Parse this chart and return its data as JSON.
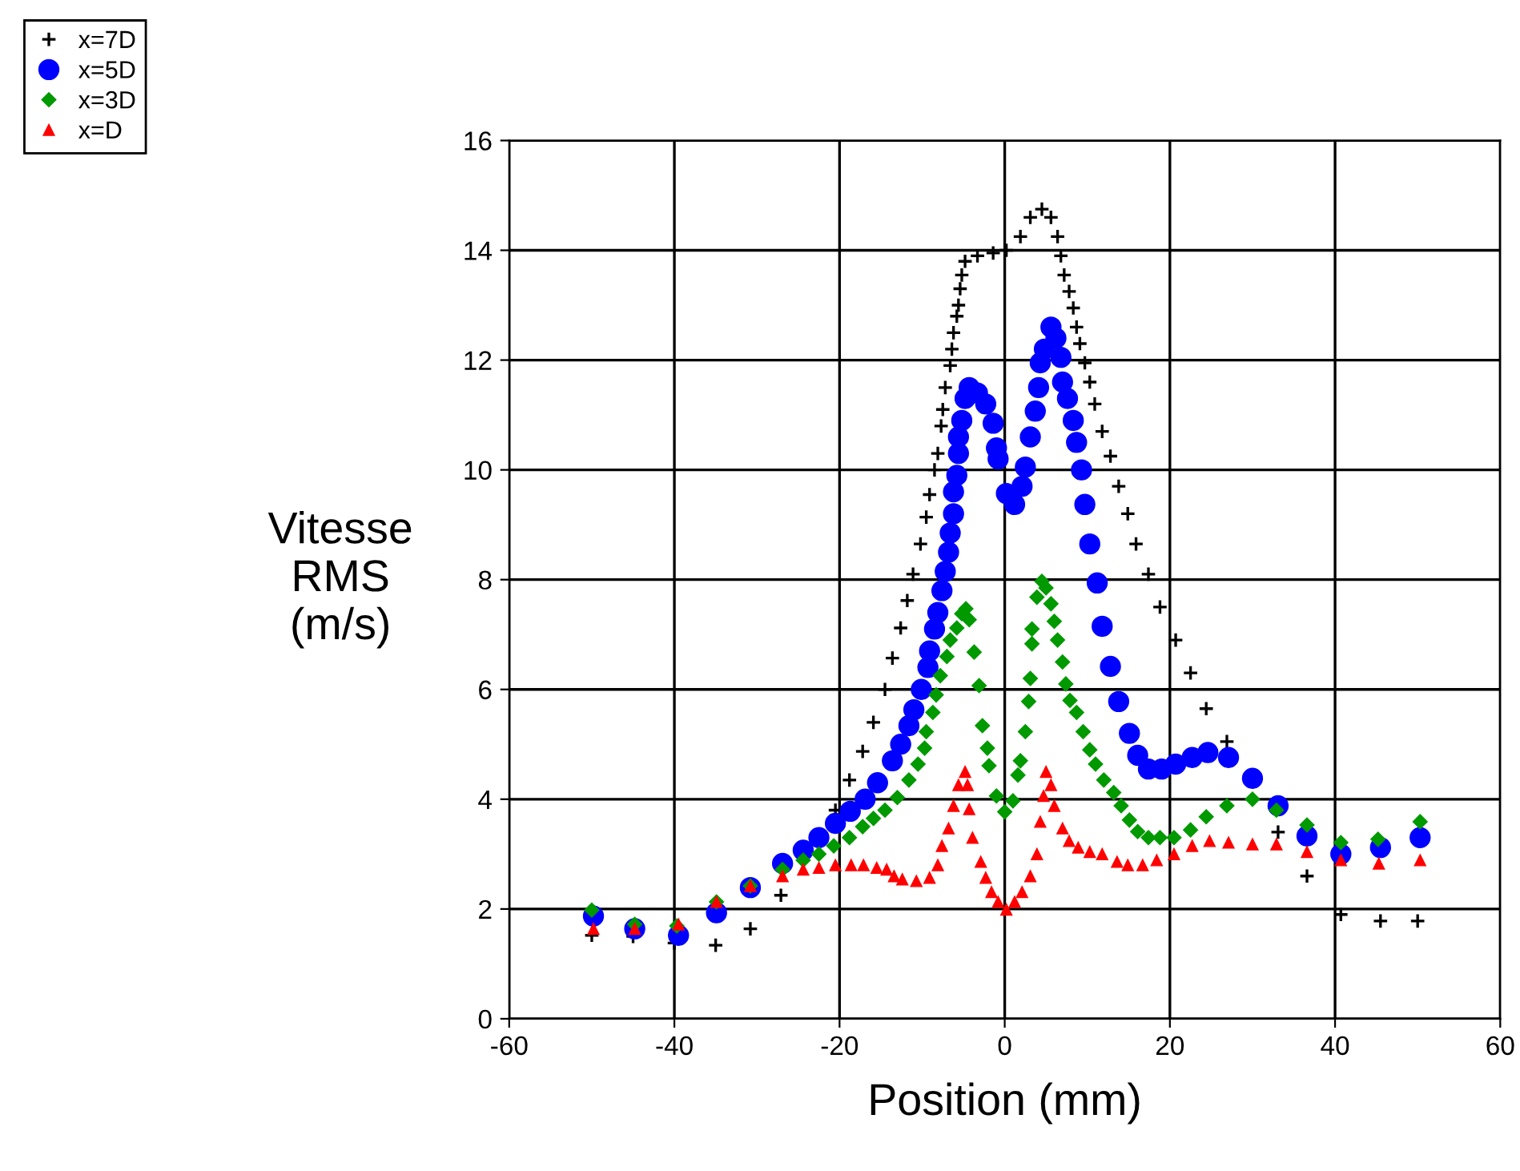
{
  "chart_data": {
    "type": "scatter",
    "xlabel": "Position (mm)",
    "ylabel": "Vitesse\nRMS\n(m/s)",
    "xlim": [
      -60,
      60
    ],
    "xticks": [
      -60,
      -40,
      -20,
      0,
      20,
      40,
      60
    ],
    "ylim": [
      0,
      16
    ],
    "yticks": [
      0,
      2,
      4,
      6,
      8,
      10,
      12,
      14,
      16
    ],
    "grid": true,
    "legend": "top left",
    "series": [
      {
        "name": "x=7D",
        "color": "#000000",
        "marker": "cross",
        "x": [
          -50,
          -45,
          -40,
          -35,
          -30.8,
          -27.1,
          -20.5,
          -18.8,
          -17.2,
          -15.9,
          -14.5,
          -13.6,
          -12.6,
          -11.8,
          -11.1,
          -10.2,
          -9.5,
          -9.1,
          -8.5,
          -8.1,
          -7.7,
          -7.5,
          -7.2,
          -6.6,
          -6.4,
          -6.2,
          -5.8,
          -5.6,
          -5.4,
          -5.2,
          -4.8,
          -3.3,
          -1.4,
          0.2,
          1.9,
          3.1,
          4.5,
          5.6,
          6.4,
          6.8,
          7.2,
          7.8,
          8.3,
          8.7,
          9.1,
          9.7,
          10.3,
          10.9,
          11.8,
          12.8,
          13.8,
          14.9,
          15.9,
          17.4,
          18.8,
          20.7,
          22.5,
          24.4,
          26.9,
          33.1,
          36.6,
          40.7,
          45.5,
          50
        ],
        "values": [
          1.52,
          1.5,
          1.38,
          1.34,
          1.64,
          2.25,
          3.8,
          4.35,
          4.87,
          5.4,
          6.0,
          6.57,
          7.12,
          7.62,
          8.1,
          8.65,
          9.14,
          9.55,
          10.0,
          10.3,
          10.8,
          11.1,
          11.5,
          11.9,
          12.2,
          12.5,
          12.8,
          13.0,
          13.3,
          13.55,
          13.8,
          13.9,
          13.95,
          14.0,
          14.25,
          14.6,
          14.75,
          14.6,
          14.25,
          13.9,
          13.55,
          13.25,
          12.95,
          12.6,
          12.3,
          11.95,
          11.6,
          11.2,
          10.7,
          10.25,
          9.7,
          9.2,
          8.65,
          8.1,
          7.5,
          6.9,
          6.3,
          5.65,
          5.05,
          3.4,
          2.6,
          1.9,
          1.78,
          1.78
        ]
      },
      {
        "name": "x=5D",
        "color": "#0000ff",
        "marker": "circle",
        "x": [
          -49.8,
          -44.8,
          -39.5,
          -34.9,
          -30.8,
          -26.9,
          -24.4,
          -22.5,
          -20.5,
          -18.7,
          -16.9,
          -15.4,
          -13.6,
          -12.6,
          -11.6,
          -11.0,
          -10.1,
          -9.3,
          -9.1,
          -8.5,
          -8.1,
          -7.6,
          -7.2,
          -6.8,
          -6.6,
          -6.2,
          -6.2,
          -5.8,
          -5.6,
          -5.6,
          -5.2,
          -4.8,
          -4.3,
          -3.3,
          -2.3,
          -1.4,
          -1.0,
          -0.8,
          0.2,
          1.2,
          2.1,
          2.5,
          3.1,
          3.7,
          4.1,
          4.3,
          4.8,
          5.6,
          6.2,
          6.8,
          7.0,
          7.6,
          8.3,
          8.7,
          9.3,
          9.7,
          10.3,
          11.2,
          11.8,
          12.8,
          13.8,
          15.1,
          16.1,
          17.4,
          19.0,
          20.7,
          22.7,
          24.6,
          27.1,
          30.0,
          33.1,
          36.6,
          40.7,
          45.5,
          50.3
        ],
        "values": [
          1.87,
          1.64,
          1.52,
          1.93,
          2.39,
          2.83,
          3.07,
          3.3,
          3.56,
          3.78,
          4.0,
          4.3,
          4.7,
          5.0,
          5.34,
          5.63,
          6.0,
          6.4,
          6.7,
          7.1,
          7.4,
          7.8,
          8.15,
          8.5,
          8.85,
          9.2,
          9.6,
          9.9,
          10.3,
          10.6,
          10.9,
          11.3,
          11.5,
          11.4,
          11.2,
          10.85,
          10.4,
          10.2,
          9.57,
          9.37,
          9.7,
          10.05,
          10.6,
          11.07,
          11.5,
          11.95,
          12.2,
          12.6,
          12.4,
          12.05,
          11.6,
          11.3,
          10.9,
          10.5,
          10.0,
          9.37,
          8.65,
          7.94,
          7.15,
          6.42,
          5.78,
          5.2,
          4.8,
          4.55,
          4.55,
          4.64,
          4.76,
          4.85,
          4.76,
          4.38,
          3.88,
          3.33,
          3.0,
          3.12,
          3.3
        ]
      },
      {
        "name": "x=3D",
        "color": "#009900",
        "marker": "diamond",
        "x": [
          -50,
          -44.8,
          -39.7,
          -34.9,
          -30.8,
          -26.9,
          -24.4,
          -22.5,
          -20.7,
          -18.8,
          -17.2,
          -15.9,
          -14.5,
          -13,
          -11.6,
          -10.5,
          -9.7,
          -9.5,
          -8.7,
          -8.3,
          -7.8,
          -7.0,
          -6.6,
          -5.8,
          -5.2,
          -4.7,
          -4.3,
          -3.7,
          -3.1,
          -2.7,
          -2.1,
          -1.9,
          -1.0,
          0,
          1.0,
          1.6,
          1.9,
          2.5,
          2.9,
          3.1,
          3.3,
          3.3,
          3.9,
          4.5,
          5.0,
          5.6,
          6.0,
          6.4,
          7.0,
          7.4,
          7.9,
          8.7,
          9.5,
          10.3,
          11.0,
          12.0,
          13.2,
          14.1,
          15.1,
          16.1,
          17.4,
          18.8,
          20.5,
          22.5,
          24.4,
          26.9,
          30.0,
          32.9,
          36.6,
          40.7,
          45.2,
          50.3
        ],
        "values": [
          1.98,
          1.72,
          1.69,
          2.13,
          2.42,
          2.72,
          2.89,
          3.0,
          3.15,
          3.3,
          3.5,
          3.65,
          3.8,
          4.03,
          4.35,
          4.64,
          4.93,
          5.23,
          5.58,
          5.9,
          6.25,
          6.6,
          6.9,
          7.12,
          7.38,
          7.47,
          7.27,
          6.68,
          6.07,
          5.34,
          4.93,
          4.61,
          4.06,
          3.77,
          3.97,
          4.44,
          4.7,
          5.23,
          5.78,
          6.2,
          6.83,
          7.1,
          7.68,
          7.97,
          7.85,
          7.56,
          7.24,
          6.9,
          6.5,
          6.1,
          5.8,
          5.58,
          5.23,
          4.9,
          4.64,
          4.35,
          4.12,
          3.88,
          3.62,
          3.41,
          3.3,
          3.3,
          3.3,
          3.44,
          3.68,
          3.88,
          4.0,
          3.8,
          3.53,
          3.21,
          3.27,
          3.59
        ]
      },
      {
        "name": "x=D",
        "color": "#ff0000",
        "marker": "triangle",
        "x": [
          -49.8,
          -44.8,
          -39.5,
          -34.9,
          -30.8,
          -26.9,
          -24.4,
          -22.5,
          -20.5,
          -18.6,
          -17.1,
          -15.5,
          -14.3,
          -13.4,
          -12.4,
          -10.7,
          -9.1,
          -8.1,
          -7.6,
          -6.8,
          -6.2,
          -5.6,
          -4.8,
          -4.5,
          -4.3,
          -3.9,
          -2.9,
          -2.3,
          -1.6,
          -0.8,
          0.2,
          1.2,
          2.1,
          3.1,
          3.9,
          4.3,
          4.7,
          5.0,
          5.6,
          6.0,
          7.0,
          7.8,
          8.9,
          10.3,
          11.8,
          13.6,
          14.9,
          16.7,
          18.4,
          20.5,
          22.7,
          24.8,
          27.1,
          30.0,
          32.9,
          36.6,
          40.7,
          45.3,
          50.3
        ],
        "values": [
          1.64,
          1.64,
          1.72,
          2.13,
          2.42,
          2.6,
          2.72,
          2.75,
          2.8,
          2.8,
          2.8,
          2.75,
          2.72,
          2.6,
          2.54,
          2.51,
          2.57,
          2.8,
          3.15,
          3.47,
          3.88,
          4.26,
          4.5,
          4.26,
          3.82,
          3.3,
          2.86,
          2.57,
          2.31,
          2.13,
          1.99,
          2.13,
          2.31,
          2.6,
          3.0,
          3.59,
          4.06,
          4.5,
          4.26,
          3.88,
          3.47,
          3.24,
          3.12,
          3.04,
          3.0,
          2.86,
          2.8,
          2.8,
          2.89,
          3.0,
          3.15,
          3.24,
          3.21,
          3.18,
          3.18,
          3.04,
          2.89,
          2.83,
          2.89
        ]
      }
    ]
  }
}
